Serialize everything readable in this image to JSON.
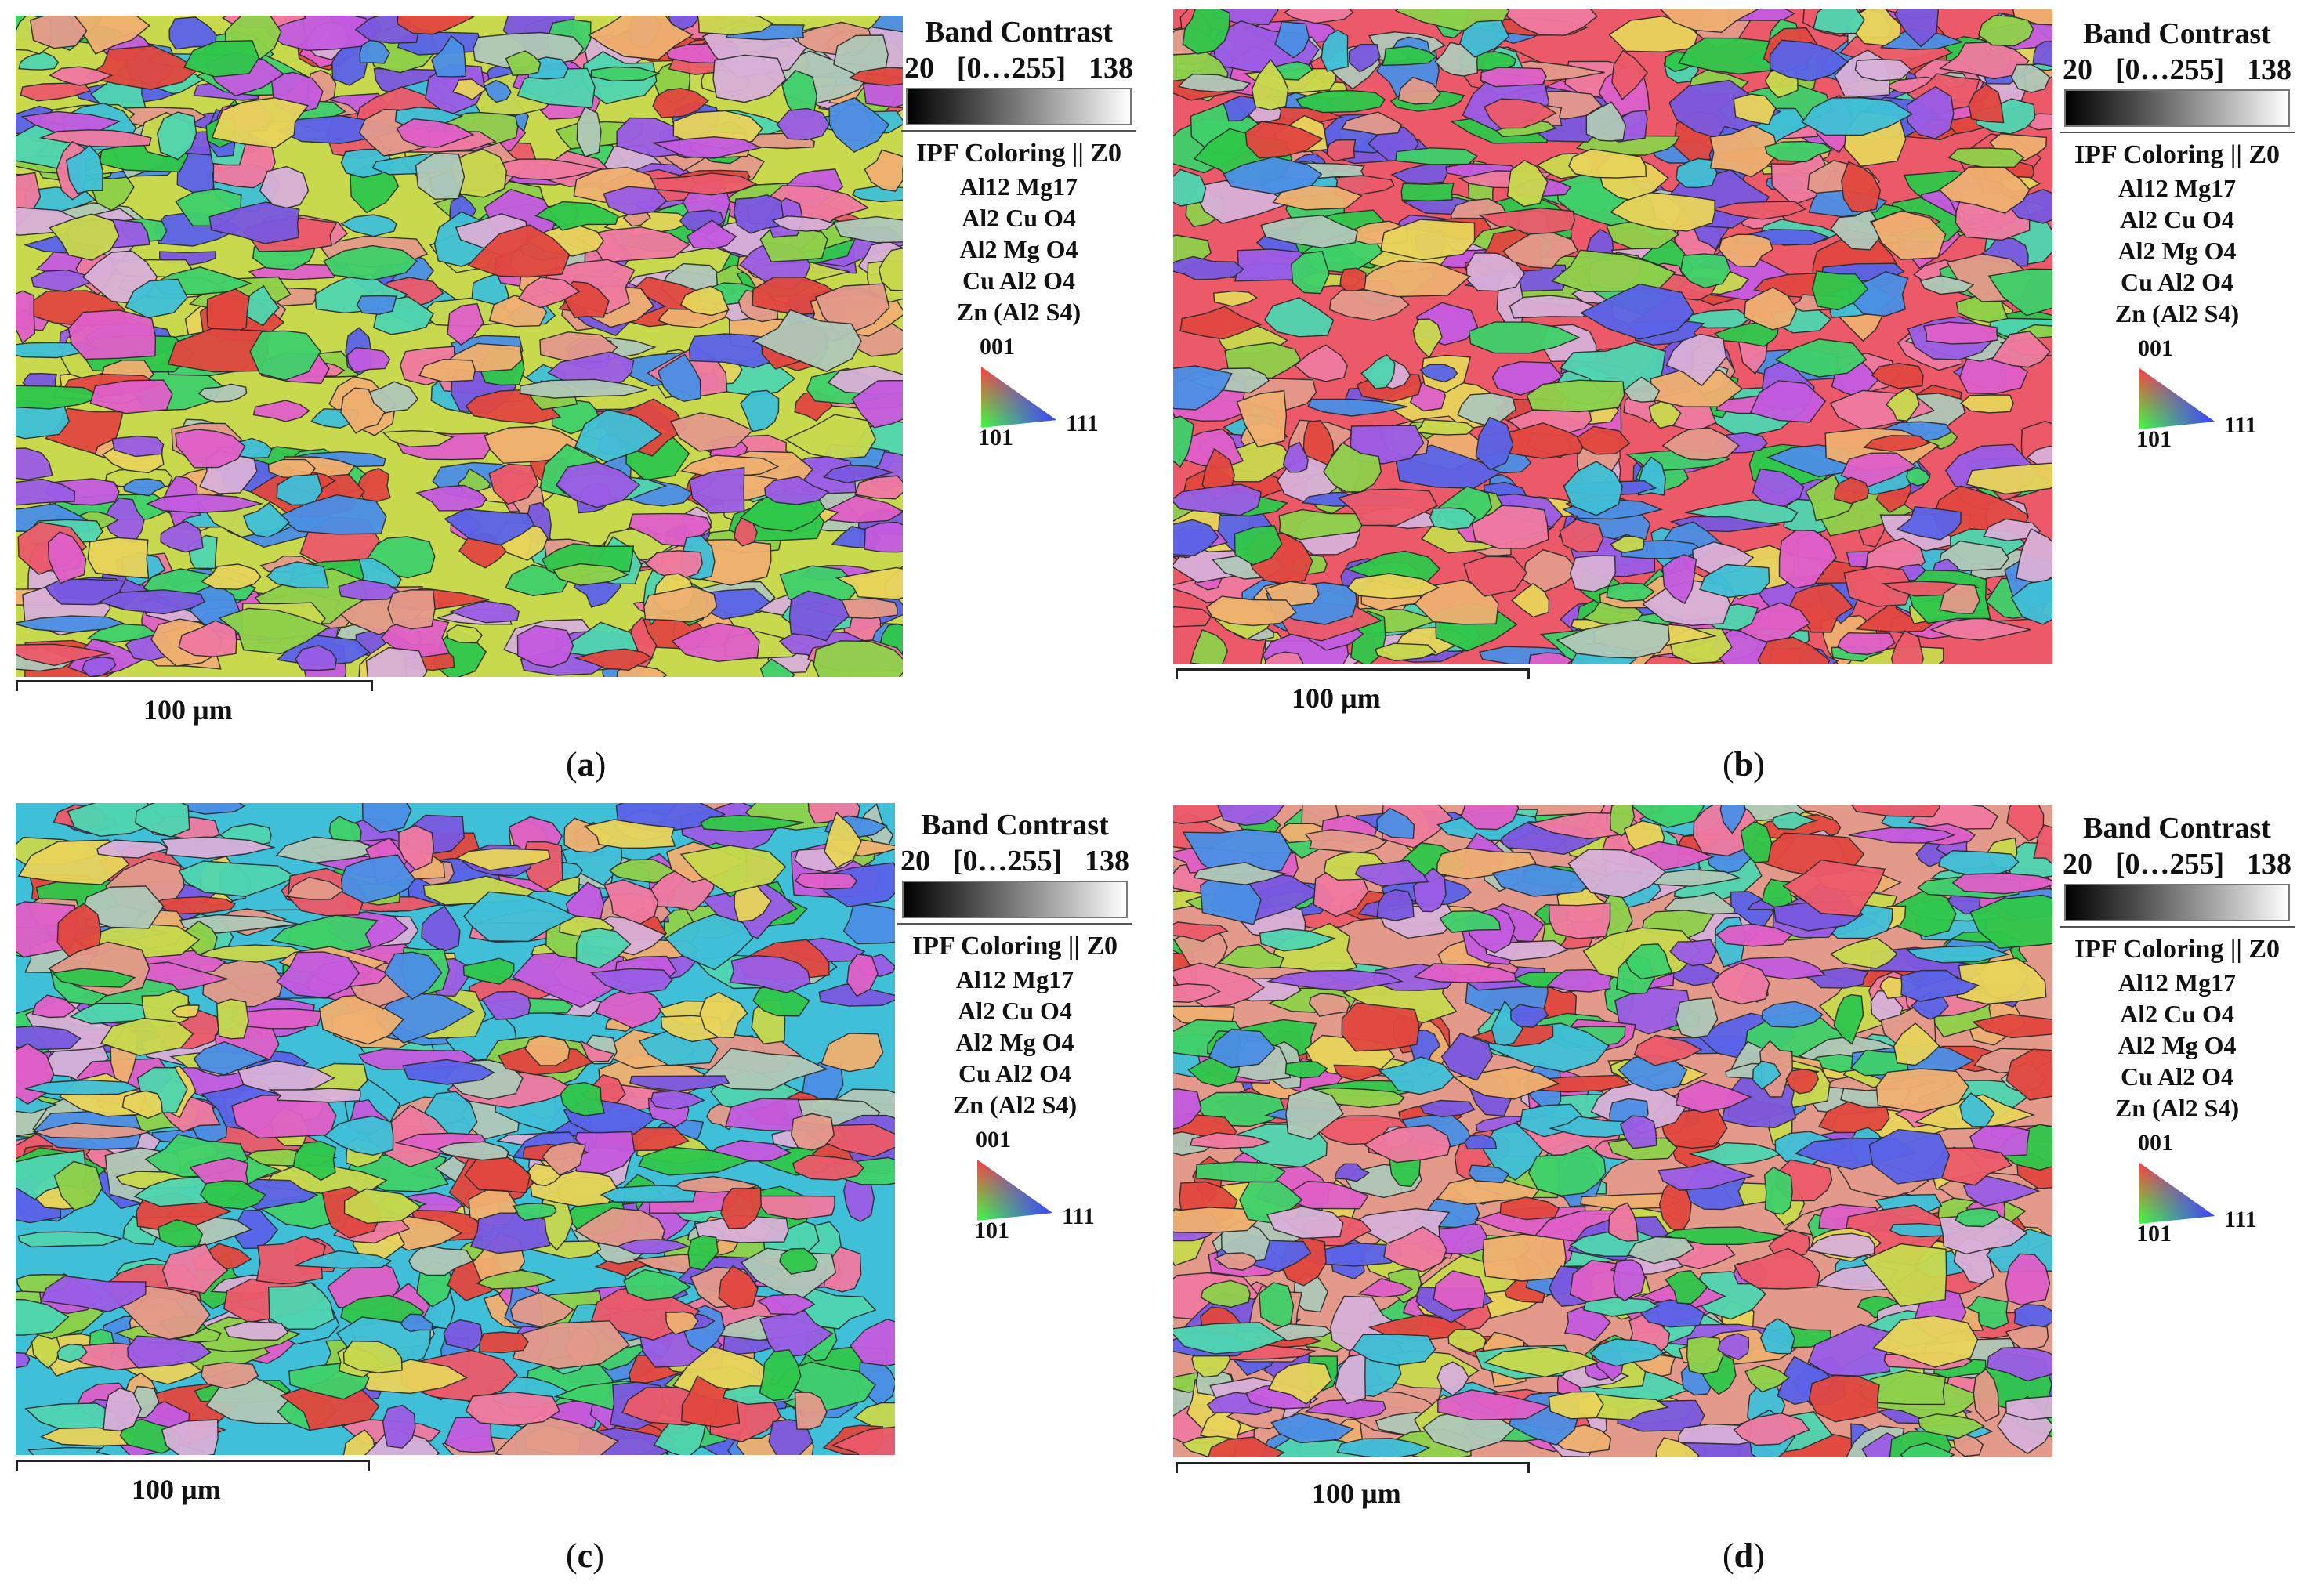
{
  "panels": [
    {
      "id": "a",
      "caption_letter": "a",
      "scale_label": "100 µm",
      "legend": {
        "title": "Band Contrast",
        "range_min": "20",
        "range_mid": "[0…255]",
        "range_max": "138",
        "ipf_label": "IPF Coloring || Z0",
        "phases": [
          "Al12 Mg17",
          "Al2 Cu O4",
          "Al2 Mg O4",
          "Cu Al2 O4",
          "Zn  (Al2 S4)"
        ],
        "triangle_labels": {
          "top": "001",
          "left": "101",
          "right": "111"
        }
      }
    },
    {
      "id": "b",
      "caption_letter": "b",
      "scale_label": "100 µm",
      "legend": {
        "title": "Band Contrast",
        "range_min": "20",
        "range_mid": "[0…255]",
        "range_max": "138",
        "ipf_label": "IPF Coloring || Z0",
        "phases": [
          "Al12 Mg17",
          "Al2 Cu O4",
          "Al2 Mg O4",
          "Cu Al2 O4",
          "Zn  (Al2 S4)"
        ],
        "triangle_labels": {
          "top": "001",
          "left": "101",
          "right": "111"
        }
      }
    },
    {
      "id": "c",
      "caption_letter": "c",
      "scale_label": "100 µm",
      "legend": {
        "title": "Band Contrast",
        "range_min": "20",
        "range_mid": "[0…255]",
        "range_max": "138",
        "ipf_label": "IPF Coloring || Z0",
        "phases": [
          "Al12 Mg17",
          "Al2 Cu O4",
          "Al2 Mg O4",
          "Cu Al2 O4",
          "Zn  (Al2 S4)"
        ],
        "triangle_labels": {
          "top": "001",
          "left": "101",
          "right": "111"
        }
      }
    },
    {
      "id": "d",
      "caption_letter": "d",
      "scale_label": "100 µm",
      "legend": {
        "title": "Band Contrast",
        "range_min": "20",
        "range_mid": "[0…255]",
        "range_max": "138",
        "ipf_label": "IPF Coloring || Z0",
        "phases": [
          "Al12 Mg17",
          "Al2 Cu O4",
          "Al2 Mg O4",
          "Cu Al2 O4",
          "Zn  (Al2 S4)"
        ],
        "triangle_labels": {
          "top": "001",
          "left": "101",
          "right": "111"
        }
      }
    }
  ],
  "grain_palette": [
    "#e2473f",
    "#ec5a6a",
    "#f07aa0",
    "#e05fc8",
    "#c45ae0",
    "#9b5ce6",
    "#7a58e0",
    "#5a63e8",
    "#4b8fe6",
    "#3fc0d8",
    "#4fd6b0",
    "#3fd16a",
    "#2fc84a",
    "#8fd14a",
    "#c9d94d",
    "#e8d45a",
    "#f0b070",
    "#e49a8a",
    "#d8b0d8",
    "#b0c8b8"
  ]
}
